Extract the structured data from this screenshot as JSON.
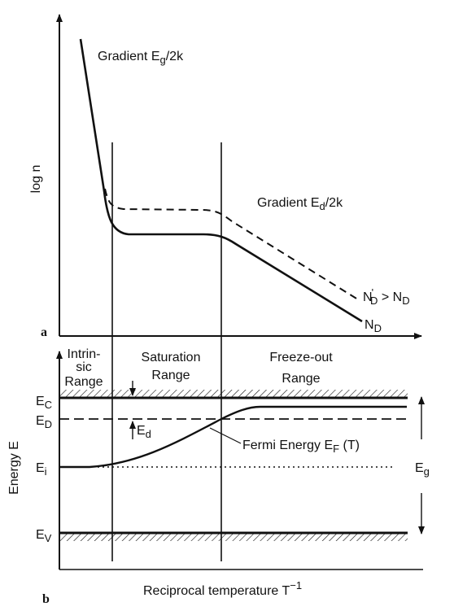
{
  "panel_a": {
    "letter": "a",
    "y_axis_label": "log n",
    "gradient_intrinsic": {
      "prefix": "Gradient E",
      "sub": "g",
      "suffix": "/2k"
    },
    "gradient_freeze": {
      "prefix": "Gradient E",
      "sub": "d",
      "suffix": "/2k"
    },
    "curve_dashed": {
      "lhs": "N",
      "lhs_sup": "'",
      "lhs_sub": "D",
      "op": " > ",
      "rhs": "N",
      "rhs_sub": "D"
    },
    "curve_solid": {
      "main": "N",
      "sub": "D"
    }
  },
  "regions": {
    "intrinsic": [
      "Intrin-",
      "sic",
      "Range"
    ],
    "saturation": [
      "Saturation",
      "Range"
    ],
    "freeze_out": [
      "Freeze-out",
      "Range"
    ]
  },
  "panel_b": {
    "letter": "b",
    "y_axis_label": "Energy E",
    "x_axis_label": {
      "main": "Reciprocal temperature T",
      "sup": "−1"
    },
    "levels": {
      "Ec": {
        "main": "E",
        "sub": "C"
      },
      "Ed": {
        "main": "E",
        "sub": "D"
      },
      "Ei": {
        "main": "E",
        "sub": "i"
      },
      "Ev": {
        "main": "E",
        "sub": "V"
      }
    },
    "ionization_gap": {
      "main": "E",
      "sub": "d"
    },
    "band_gap": {
      "main": "E",
      "sub": "g"
    },
    "fermi": {
      "prefix": "Fermi Energy E",
      "sub": "F",
      "suffix": " (T)"
    }
  },
  "colors": {
    "ink": "#111111",
    "background": "#ffffff"
  }
}
